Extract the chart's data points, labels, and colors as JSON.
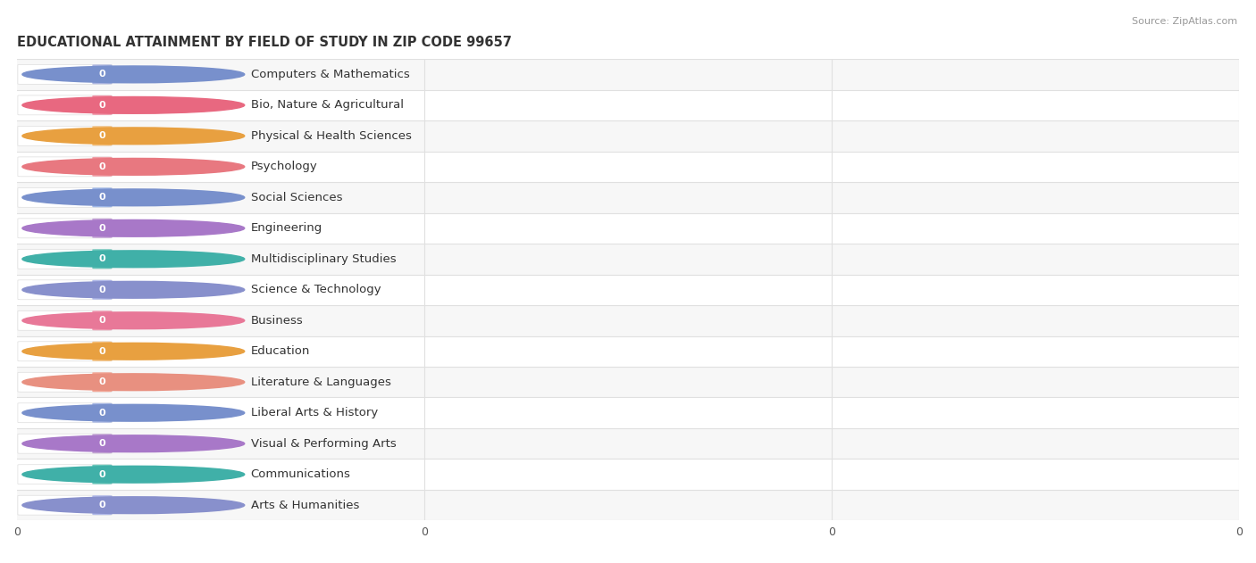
{
  "title": "EDUCATIONAL ATTAINMENT BY FIELD OF STUDY IN ZIP CODE 99657",
  "source": "Source: ZipAtlas.com",
  "categories": [
    "Computers & Mathematics",
    "Bio, Nature & Agricultural",
    "Physical & Health Sciences",
    "Psychology",
    "Social Sciences",
    "Engineering",
    "Multidisciplinary Studies",
    "Science & Technology",
    "Business",
    "Education",
    "Literature & Languages",
    "Liberal Arts & History",
    "Visual & Performing Arts",
    "Communications",
    "Arts & Humanities"
  ],
  "values": [
    0,
    0,
    0,
    0,
    0,
    0,
    0,
    0,
    0,
    0,
    0,
    0,
    0,
    0,
    0
  ],
  "bar_colors": [
    "#aab4e0",
    "#f098aa",
    "#f5bf7a",
    "#f0a0a8",
    "#a0b8e8",
    "#c8a8d8",
    "#6cc8bc",
    "#b0b8e8",
    "#f098b0",
    "#f5bf7a",
    "#f4a898",
    "#a8b8e4",
    "#c4a8d4",
    "#6cc8bc",
    "#b0b8e8"
  ],
  "circle_colors": [
    "#7890cc",
    "#e86880",
    "#e8a040",
    "#e87880",
    "#7890cc",
    "#a878c8",
    "#40b0a8",
    "#8890cc",
    "#e87898",
    "#e8a040",
    "#e89080",
    "#7890cc",
    "#a878c8",
    "#40b0a8",
    "#8890cc"
  ],
  "background_color": "#ffffff",
  "row_bg_odd": "#f7f7f7",
  "row_bg_even": "#ffffff",
  "separator_color": "#e0e0e0",
  "title_fontsize": 10.5,
  "label_fontsize": 9.5
}
